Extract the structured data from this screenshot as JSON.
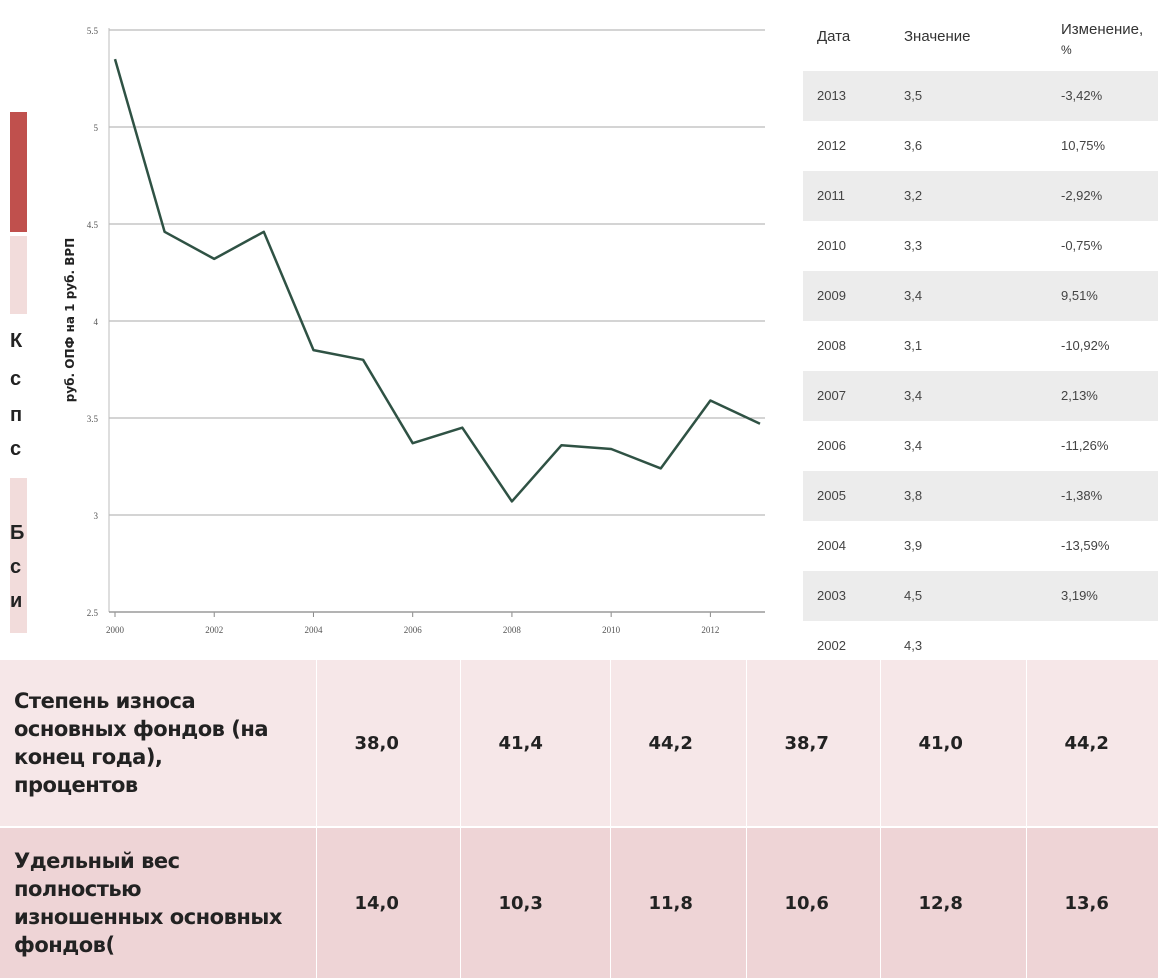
{
  "chart_data": {
    "type": "line",
    "ylabel": "руб. ОПФ на 1 руб. ВРП",
    "xlabel": "",
    "x": [
      2000,
      2001,
      2002,
      2003,
      2004,
      2005,
      2006,
      2007,
      2008,
      2009,
      2010,
      2011,
      2012,
      2013
    ],
    "values": [
      5.35,
      4.46,
      4.32,
      4.46,
      3.85,
      3.8,
      3.37,
      3.45,
      3.07,
      3.36,
      3.34,
      3.24,
      3.59,
      3.47
    ],
    "ylim": [
      2.5,
      5.5
    ],
    "yticks": [
      "2.5",
      "3",
      "3.5",
      "4",
      "4.5",
      "5",
      "5.5"
    ],
    "xticks": [
      "2000",
      "2002",
      "2004",
      "2006",
      "2008",
      "2010",
      "2012"
    ],
    "line_color": "#2f5244",
    "grid": "horizontal"
  },
  "right_table": {
    "headers": [
      "Дата",
      "Значение",
      "Изменение,",
      "%"
    ],
    "rows": [
      [
        "2013",
        "3,5",
        "-3,42%"
      ],
      [
        "2012",
        "3,6",
        "10,75%"
      ],
      [
        "2011",
        "3,2",
        "-2,92%"
      ],
      [
        "2010",
        "3,3",
        "-0,75%"
      ],
      [
        "2009",
        "3,4",
        "9,51%"
      ],
      [
        "2008",
        "3,1",
        "-10,92%"
      ],
      [
        "2007",
        "3,4",
        "2,13%"
      ],
      [
        "2006",
        "3,4",
        "-11,26%"
      ],
      [
        "2005",
        "3,8",
        "-1,38%"
      ],
      [
        "2004",
        "3,9",
        "-13,59%"
      ],
      [
        "2003",
        "4,5",
        "3,19%"
      ],
      [
        "2002",
        "4,3",
        ""
      ]
    ]
  },
  "bottom_table": {
    "rows": [
      {
        "label": [
          "Степень износа",
          "основных фондов (на",
          "конец года),",
          "процентов"
        ],
        "values": [
          "38,0",
          "41,4",
          "44,2",
          "38,7",
          "41,0",
          "44,2"
        ]
      },
      {
        "label": [
          "Удельный вес",
          "полностью",
          "изношенных основных",
          "фондов("
        ],
        "values": [
          "14,0",
          "10,3",
          "11,8",
          "10,6",
          "12,8",
          "13,6"
        ]
      }
    ]
  },
  "left_edge": {
    "letters": [
      "К",
      "с",
      "п",
      "с",
      "Б",
      "с",
      "и"
    ],
    "accent_color": "#c0504d"
  }
}
